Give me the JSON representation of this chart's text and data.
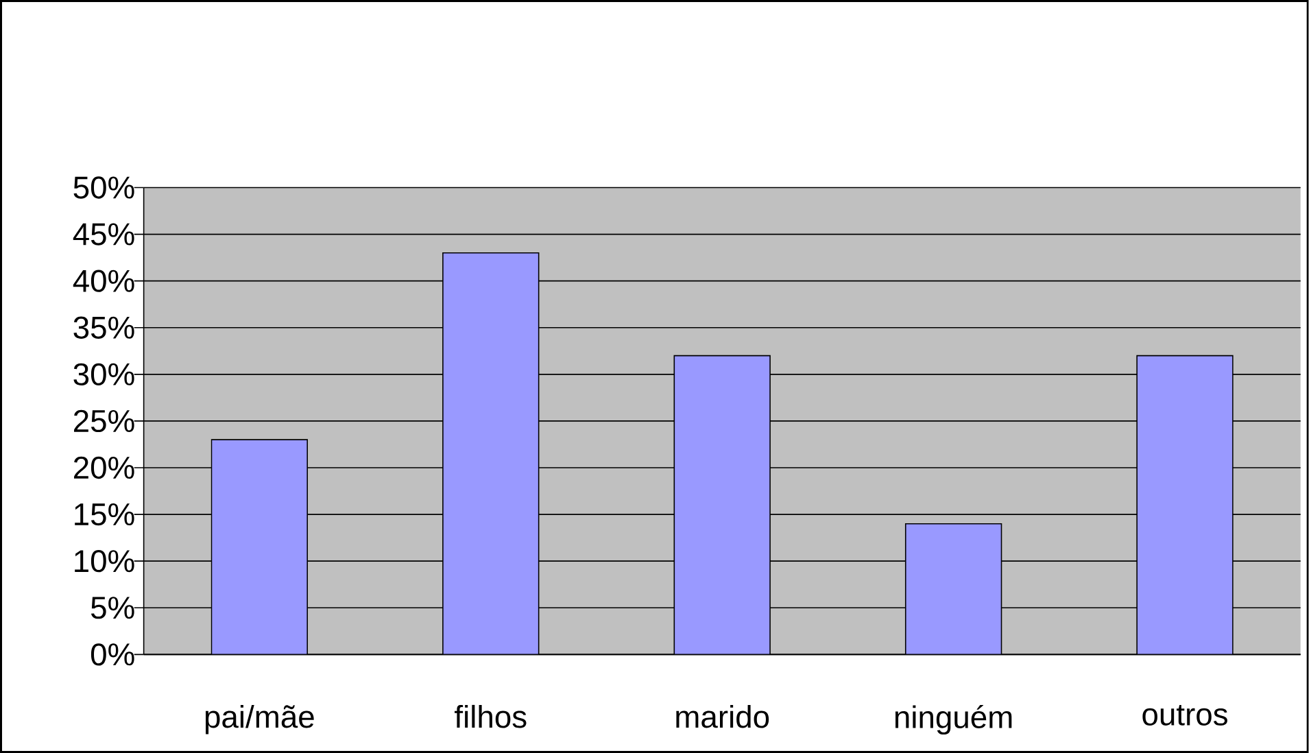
{
  "chart_data": {
    "type": "bar",
    "categories": [
      "pai/mãe",
      "filhos",
      "marido",
      "ninguém",
      "outros"
    ],
    "values": [
      23,
      43,
      32,
      14,
      32
    ],
    "color": "#9999ff",
    "ylim": [
      0,
      50
    ],
    "yticks": [
      {
        "value": 0,
        "label": "0%"
      },
      {
        "value": 5,
        "label": "5%"
      },
      {
        "value": 10,
        "label": "10%"
      },
      {
        "value": 15,
        "label": "15%"
      },
      {
        "value": 20,
        "label": "20%"
      },
      {
        "value": 25,
        "label": "25%"
      },
      {
        "value": 30,
        "label": "30%"
      },
      {
        "value": 35,
        "label": "35%"
      },
      {
        "value": 40,
        "label": "40%"
      },
      {
        "value": 45,
        "label": "45%"
      },
      {
        "value": 50,
        "label": "50%"
      }
    ],
    "grid": "y"
  }
}
